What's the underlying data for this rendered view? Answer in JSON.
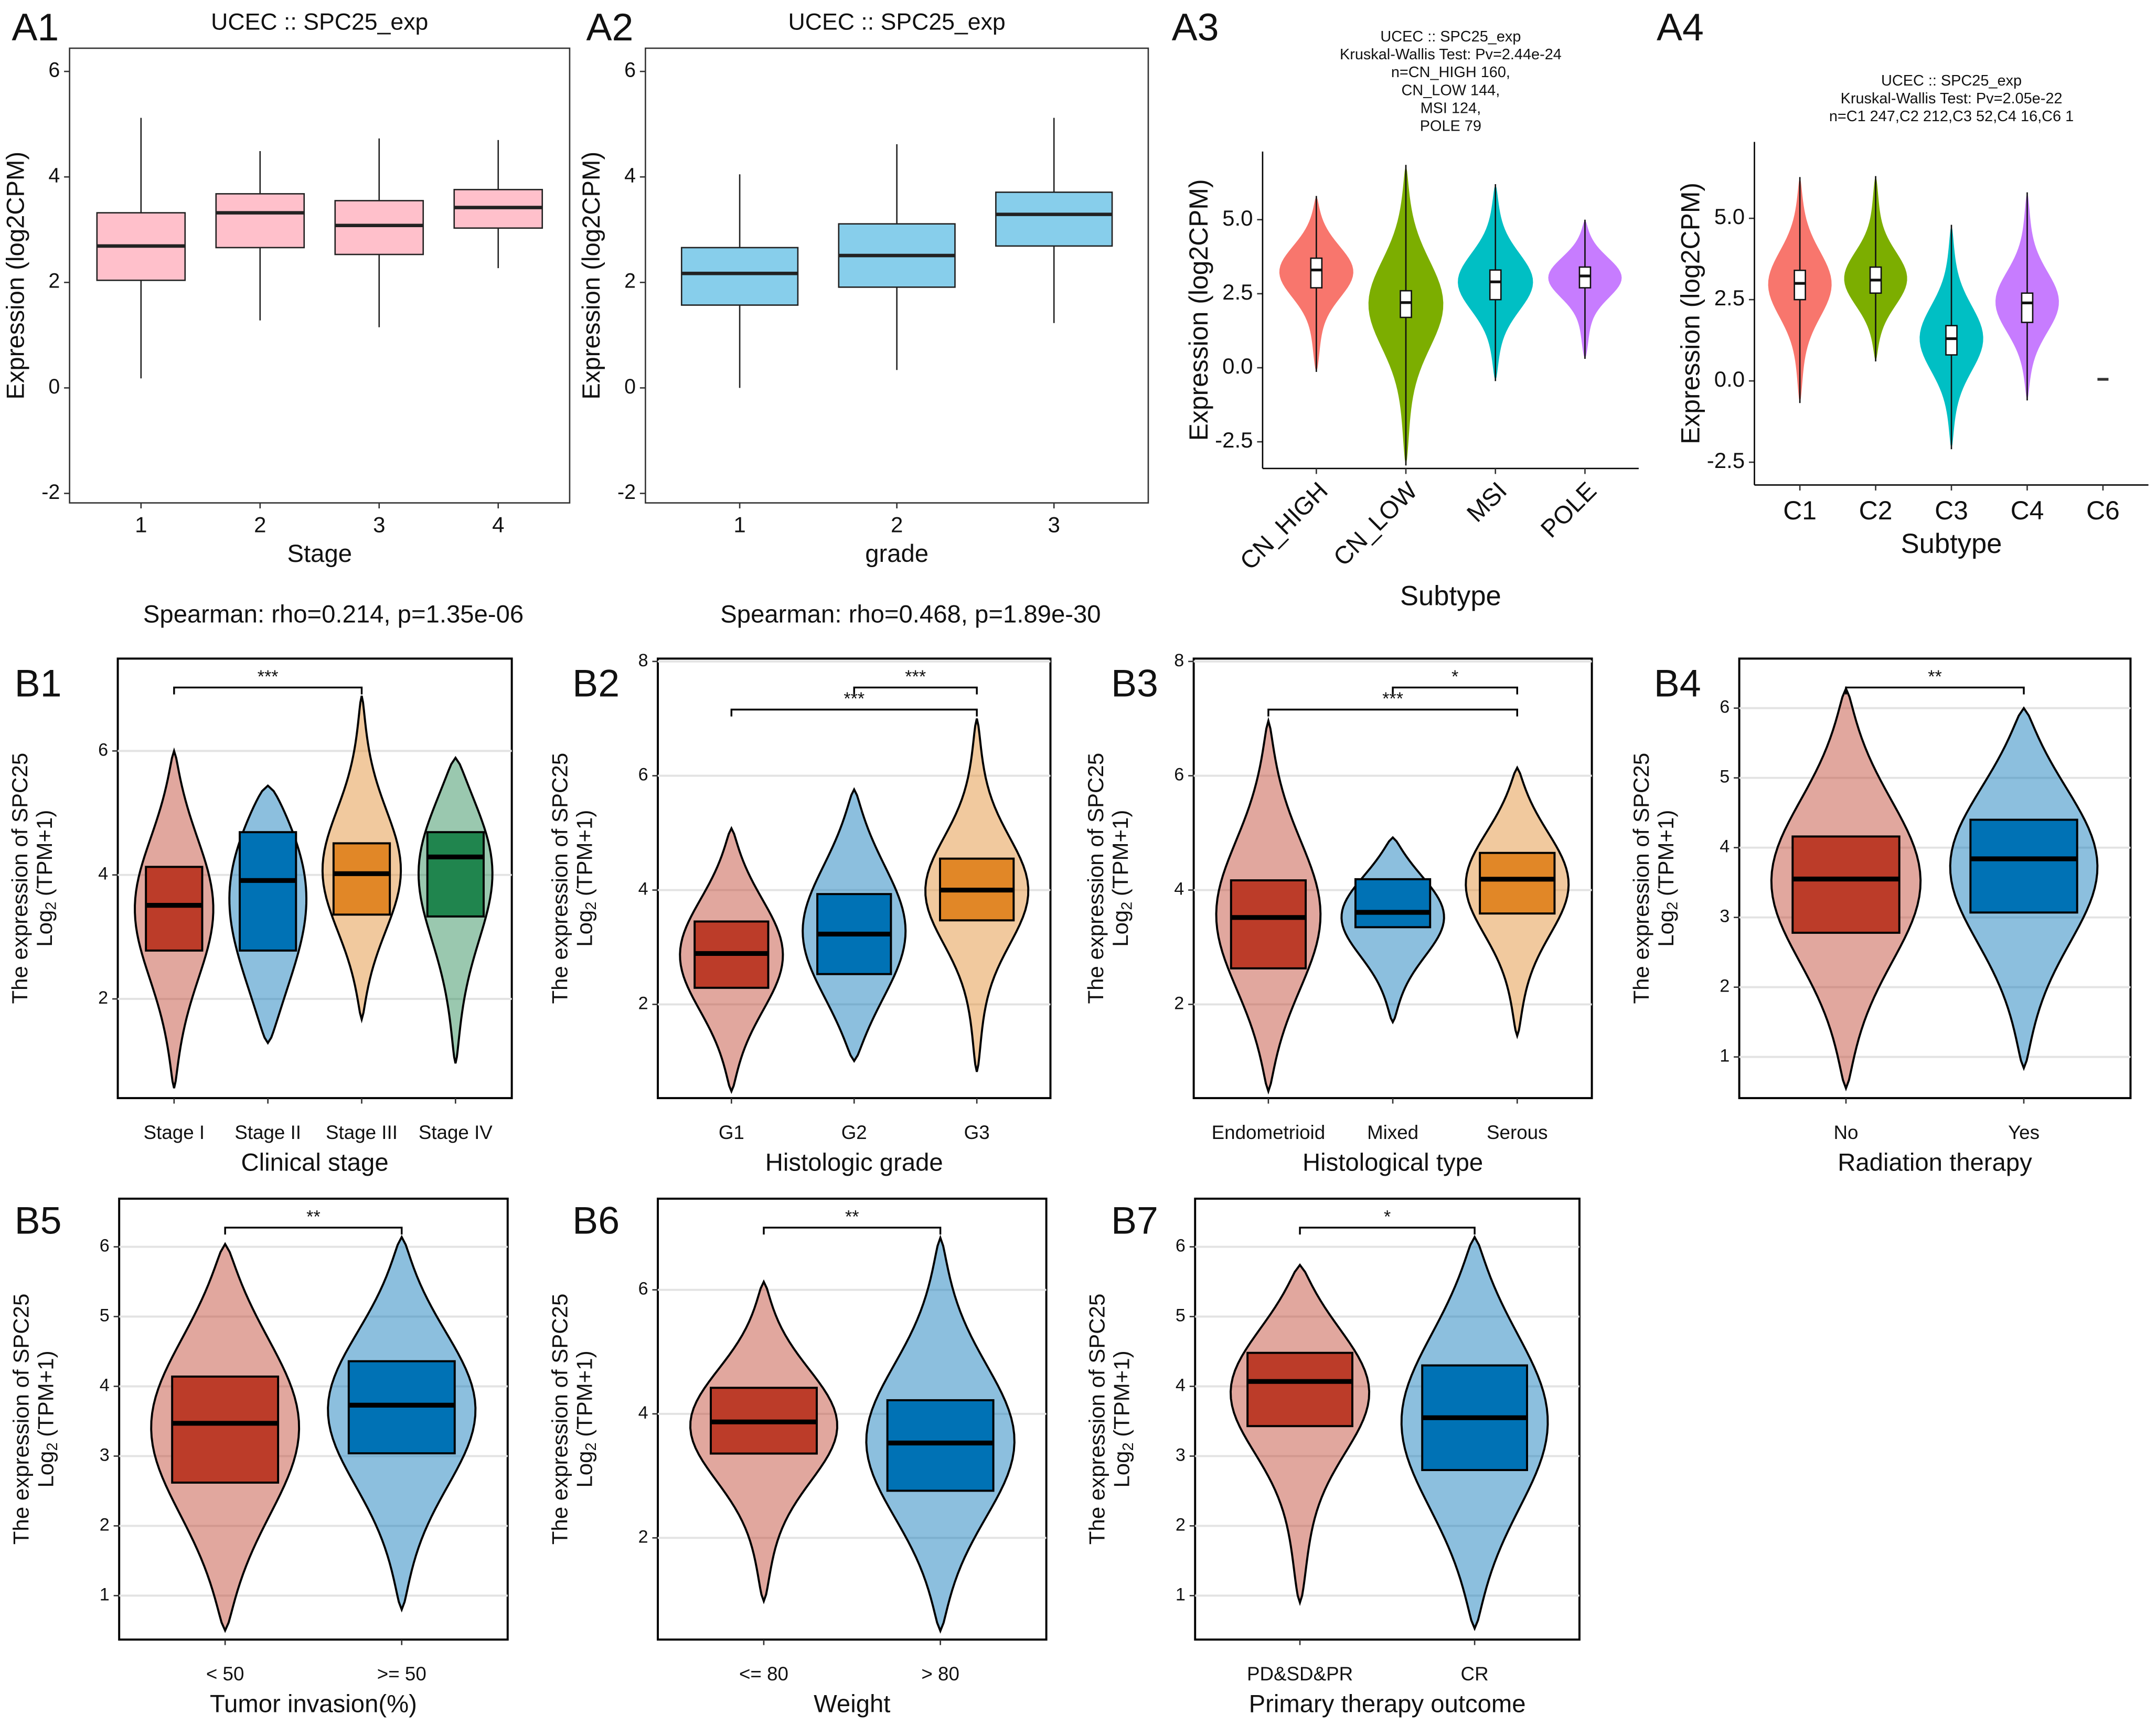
{
  "chart_data": [
    {
      "type": "box",
      "panel": "A1",
      "title": "UCEC  ::  SPC25_exp",
      "note": "Spearman: rho=0.214, p=1.35e-06",
      "xlabel": "Stage",
      "ylabel": "Expression (log2CPM)",
      "frame": "box",
      "grid": false,
      "categories": [
        "1",
        "2",
        "3",
        "4"
      ],
      "colors": [
        "#ffc0cb",
        "#ffc0cb",
        "#ffc0cb",
        "#ffc0cb"
      ],
      "boxes": [
        {
          "min": 0.18,
          "q1": 2.04,
          "median": 2.69,
          "q3": 3.32,
          "max": 5.12
        },
        {
          "min": 1.28,
          "q1": 2.66,
          "median": 3.32,
          "q3": 3.68,
          "max": 4.49
        },
        {
          "min": 1.15,
          "q1": 2.53,
          "median": 3.08,
          "q3": 3.55,
          "max": 4.73
        },
        {
          "min": 2.27,
          "q1": 3.03,
          "median": 3.42,
          "q3": 3.76,
          "max": 4.7
        }
      ],
      "ylim": [
        -2.18,
        6.44
      ],
      "yticks": [
        -2,
        0,
        2,
        4,
        6
      ]
    },
    {
      "type": "box",
      "panel": "A2",
      "title": "UCEC  ::  SPC25_exp",
      "note": "Spearman: rho=0.468, p=1.89e-30",
      "xlabel": "grade",
      "ylabel": "Expression (log2CPM)",
      "frame": "box",
      "grid": false,
      "categories": [
        "1",
        "2",
        "3"
      ],
      "colors": [
        "#87ceeb",
        "#87ceeb",
        "#87ceeb"
      ],
      "boxes": [
        {
          "min": 0,
          "q1": 1.57,
          "median": 2.17,
          "q3": 2.66,
          "max": 4.05
        },
        {
          "min": 0.34,
          "q1": 1.91,
          "median": 2.51,
          "q3": 3.11,
          "max": 4.62
        },
        {
          "min": 1.23,
          "q1": 2.69,
          "median": 3.29,
          "q3": 3.71,
          "max": 5.12
        }
      ],
      "ylim": [
        -2.18,
        6.44
      ],
      "yticks": [
        -2,
        0,
        2,
        4,
        6
      ]
    },
    {
      "type": "violin",
      "panel": "A3",
      "title": [
        "UCEC :: SPC25_exp",
        "Kruskal-Wallis Test: Pv=2.44e-24",
        "n=CN_HIGH 160,",
        "CN_LOW 144,",
        "MSI 124,",
        "POLE 79"
      ],
      "xlabel": "Subtype",
      "ylabel": "Expression (log2CPM)",
      "frame": "axes",
      "grid": false,
      "categories": [
        "CN_HIGH",
        "CN_LOW",
        "MSI",
        "POLE"
      ],
      "colors": [
        "#f8766d",
        "#7cae00",
        "#00bfc4",
        "#c77cff"
      ],
      "boxes": [
        {
          "min": -0.14,
          "q1": 2.7,
          "median": 3.3,
          "q3": 3.7,
          "max": 5.8
        },
        {
          "min": -3.3,
          "q1": 1.7,
          "median": 2.2,
          "q3": 2.6,
          "max": 6.85
        },
        {
          "min": -0.45,
          "q1": 2.3,
          "median": 2.9,
          "q3": 3.3,
          "max": 6.2
        },
        {
          "min": 0.3,
          "q1": 2.7,
          "median": 3.1,
          "q3": 3.4,
          "max": 5.0
        }
      ],
      "ylim": [
        -3.4,
        7.3
      ],
      "yticks": [
        {
          "value": -2.5,
          "label": "-2.5"
        },
        {
          "value": 0,
          "label": "0.0"
        },
        {
          "value": 2.5,
          "label": "2.5"
        },
        {
          "value": 5,
          "label": "5.0"
        }
      ]
    },
    {
      "type": "violin",
      "panel": "A4",
      "title": [
        "UCEC :: SPC25_exp",
        "Kruskal-Wallis Test: Pv=2.05e-22",
        "n=C1 247,C2 212,C3 52,C4 16,C6 1"
      ],
      "xlabel": "Subtype",
      "ylabel": "Expression (log2CPM)",
      "frame": "axes",
      "grid": false,
      "categories": [
        "C1",
        "C2",
        "C3",
        "C4",
        "C6"
      ],
      "colors": [
        "#f8766d",
        "#7cae00",
        "#00bfc4",
        "#c77cff",
        "#333333"
      ],
      "boxes": [
        {
          "min": -0.68,
          "q1": 2.5,
          "median": 3.0,
          "q3": 3.4,
          "max": 6.27
        },
        {
          "min": 0.6,
          "q1": 2.7,
          "median": 3.1,
          "q3": 3.5,
          "max": 6.3
        },
        {
          "min": -2.1,
          "q1": 0.8,
          "median": 1.3,
          "q3": 1.7,
          "max": 4.8
        },
        {
          "min": -0.6,
          "q1": 1.8,
          "median": 2.4,
          "q3": 2.7,
          "max": 5.8
        },
        {
          "min": 0.05,
          "q1": 0.05,
          "median": 0.05,
          "q3": 0.05,
          "max": 0.05
        }
      ],
      "ylim": [
        -3.2,
        7.35
      ],
      "yticks": [
        {
          "value": -2.5,
          "label": "-2.5"
        },
        {
          "value": 0,
          "label": "0.0"
        },
        {
          "value": 2.5,
          "label": "2.5"
        },
        {
          "value": 5,
          "label": "5.0"
        }
      ]
    },
    {
      "type": "violinbox",
      "panel": "B1",
      "xlabel": "Clinical stage",
      "ylabel": "The expression of SPC25",
      "ylabel2": [
        "Log",
        "2",
        "(TPM+1)"
      ],
      "frame": "box",
      "grid": true,
      "categories": [
        "Stage I",
        "Stage II",
        "Stage III",
        "Stage IV"
      ],
      "colors": [
        "#bc3c29",
        "#0072b5",
        "#e18727",
        "#20854e"
      ],
      "boxes": [
        {
          "min": 0.56,
          "q1": 2.78,
          "median": 3.51,
          "q3": 4.13,
          "max": 6.0
        },
        {
          "min": 1.29,
          "q1": 2.78,
          "median": 3.91,
          "q3": 4.69,
          "max": 5.44
        },
        {
          "min": 1.67,
          "q1": 3.36,
          "median": 4.02,
          "q3": 4.51,
          "max": 6.89
        },
        {
          "min": 0.96,
          "q1": 3.33,
          "median": 4.29,
          "q3": 4.69,
          "max": 5.89
        }
      ],
      "comparisons": [
        {
          "groups": [
            "Stage I",
            "Stage III"
          ],
          "label": "***"
        }
      ],
      "ylim": [
        0.4,
        7.49
      ],
      "yticks": [
        2,
        4,
        6
      ]
    },
    {
      "type": "violinbox",
      "panel": "B2",
      "xlabel": "Histologic grade",
      "ylabel": "The expression of SPC25",
      "ylabel2": [
        "Log",
        "2",
        "(TPM+1)"
      ],
      "frame": "box",
      "grid": true,
      "categories": [
        "G1",
        "G2",
        "G3"
      ],
      "colors": [
        "#bc3c29",
        "#0072b5",
        "#e18727"
      ],
      "boxes": [
        {
          "min": 0.48,
          "q1": 2.29,
          "median": 2.89,
          "q3": 3.45,
          "max": 5.08
        },
        {
          "min": 1.01,
          "q1": 2.53,
          "median": 3.23,
          "q3": 3.93,
          "max": 5.76
        },
        {
          "min": 0.82,
          "q1": 3.47,
          "median": 4.0,
          "q3": 4.55,
          "max": 7.0
        }
      ],
      "comparisons": [
        {
          "groups": [
            "G2",
            "G3"
          ],
          "label": "***"
        },
        {
          "groups": [
            "G1",
            "G3"
          ],
          "label": "***"
        }
      ],
      "ylim": [
        0.36,
        8.05
      ],
      "yticks": [
        2,
        4,
        6,
        8
      ]
    },
    {
      "type": "violinbox",
      "panel": "B3",
      "xlabel": "Histological type",
      "ylabel": "The expression of SPC25",
      "ylabel2": [
        "Log",
        "2",
        "(TPM+1)"
      ],
      "frame": "box",
      "grid": true,
      "categories": [
        "Endometrioid",
        "Mixed",
        "Serous"
      ],
      "colors": [
        "#bc3c29",
        "#0072b5",
        "#e18727"
      ],
      "boxes": [
        {
          "min": 0.48,
          "q1": 2.63,
          "median": 3.52,
          "q3": 4.17,
          "max": 6.96
        },
        {
          "min": 1.69,
          "q1": 3.35,
          "median": 3.61,
          "q3": 4.19,
          "max": 4.92
        },
        {
          "min": 1.45,
          "q1": 3.59,
          "median": 4.19,
          "q3": 4.65,
          "max": 6.14
        }
      ],
      "comparisons": [
        {
          "groups": [
            "Mixed",
            "Serous"
          ],
          "label": "*"
        },
        {
          "groups": [
            "Endometrioid",
            "Serous"
          ],
          "label": "***"
        }
      ],
      "ylim": [
        0.36,
        8.05
      ],
      "yticks": [
        2,
        4,
        6,
        8
      ]
    },
    {
      "type": "violinbox",
      "panel": "B4",
      "xlabel": "Radiation therapy",
      "ylabel": "The expression of SPC25",
      "ylabel2": [
        "Log",
        "2",
        "(TPM+1)"
      ],
      "frame": "box",
      "grid": true,
      "categories": [
        "No",
        "Yes"
      ],
      "colors": [
        "#bc3c29",
        "#0072b5"
      ],
      "boxes": [
        {
          "min": 0.55,
          "q1": 2.78,
          "median": 3.55,
          "q3": 4.16,
          "max": 6.28
        },
        {
          "min": 0.84,
          "q1": 3.07,
          "median": 3.84,
          "q3": 4.4,
          "max": 6.0
        }
      ],
      "comparisons": [
        {
          "groups": [
            "No",
            "Yes"
          ],
          "label": "**"
        }
      ],
      "ylim": [
        0.41,
        6.71
      ],
      "yticks": [
        1,
        2,
        3,
        4,
        5,
        6
      ]
    },
    {
      "type": "violinbox",
      "panel": "B5",
      "xlabel": "Tumor invasion(%)",
      "ylabel": "The expression of SPC25",
      "ylabel2": [
        "Log",
        "2",
        "(TPM+1)"
      ],
      "frame": "box",
      "grid": true,
      "categories": [
        "< 50",
        ">= 50"
      ],
      "colors": [
        "#bc3c29",
        "#0072b5"
      ],
      "boxes": [
        {
          "min": 0.5,
          "q1": 2.62,
          "median": 3.47,
          "q3": 4.14,
          "max": 6.04
        },
        {
          "min": 0.8,
          "q1": 3.04,
          "median": 3.73,
          "q3": 4.36,
          "max": 6.14
        }
      ],
      "comparisons": [
        {
          "groups": [
            "< 50",
            ">= 50"
          ],
          "label": "**"
        }
      ],
      "ylim": [
        0.37,
        6.69
      ],
      "yticks": [
        1,
        2,
        3,
        4,
        5,
        6
      ]
    },
    {
      "type": "violinbox",
      "panel": "B6",
      "xlabel": "Weight",
      "ylabel": "The expression of SPC25",
      "ylabel2": [
        "Log",
        "2",
        "(TPM+1)"
      ],
      "frame": "box",
      "grid": true,
      "categories": [
        "<= 80",
        "> 80"
      ],
      "colors": [
        "#bc3c29",
        "#0072b5"
      ],
      "boxes": [
        {
          "min": 0.98,
          "q1": 3.36,
          "median": 3.87,
          "q3": 4.42,
          "max": 6.13
        },
        {
          "min": 0.5,
          "q1": 2.76,
          "median": 3.53,
          "q3": 4.22,
          "max": 6.84
        }
      ],
      "comparisons": [
        {
          "groups": [
            "<= 80",
            "> 80"
          ],
          "label": "**"
        }
      ],
      "ylim": [
        0.36,
        7.47
      ],
      "yticks": [
        2,
        4,
        6
      ]
    },
    {
      "type": "violinbox",
      "panel": "B7",
      "xlabel": "Primary therapy outcome",
      "ylabel": "The expression of SPC25",
      "ylabel2": [
        "Log",
        "2",
        "(TPM+1)"
      ],
      "frame": "box",
      "grid": true,
      "categories": [
        "PD&SD&PR",
        "CR"
      ],
      "colors": [
        "#bc3c29",
        "#0072b5"
      ],
      "boxes": [
        {
          "min": 0.9,
          "q1": 3.43,
          "median": 4.07,
          "q3": 4.48,
          "max": 5.74
        },
        {
          "min": 0.53,
          "q1": 2.8,
          "median": 3.55,
          "q3": 4.3,
          "max": 6.14
        }
      ],
      "comparisons": [
        {
          "groups": [
            "PD&SD&PR",
            "CR"
          ],
          "label": "*"
        }
      ],
      "ylim": [
        0.37,
        6.69
      ],
      "yticks": [
        1,
        2,
        3,
        4,
        5,
        6
      ]
    }
  ]
}
